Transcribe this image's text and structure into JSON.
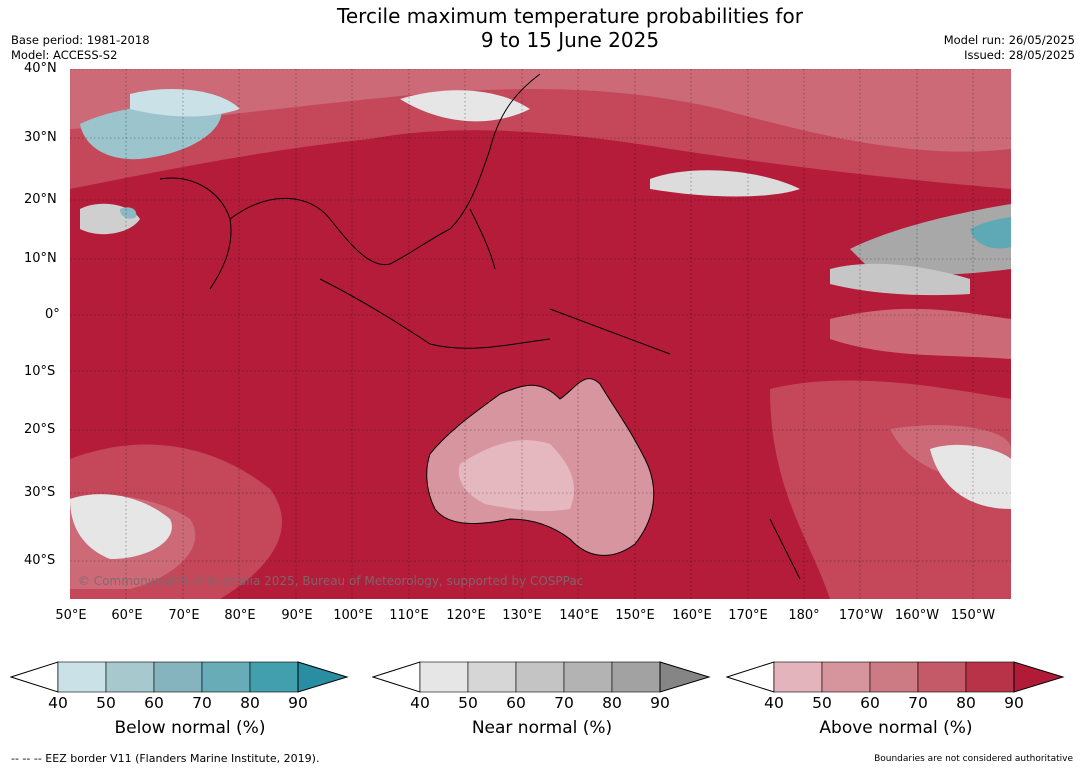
{
  "title_line1": "Tercile maximum temperature probabilities for",
  "title_line2": "9 to 15 June 2025",
  "base_period": "Base period: 1981-2018",
  "model": "Model: ACCESS-S2",
  "model_run": "Model run: 26/05/2025",
  "issued": "Issued: 28/05/2025",
  "copyright": "© Commonwealth of Australia 2025, Bureau of Meteorology, supported by COSPPac",
  "lat_labels": [
    "40°N",
    "30°N",
    "20°N",
    "10°N",
    "0°",
    "10°S",
    "20°S",
    "30°S",
    "40°S"
  ],
  "lon_labels": [
    "50°E",
    "60°E",
    "70°E",
    "80°E",
    "90°E",
    "100°E",
    "110°E",
    "120°E",
    "130°E",
    "140°E",
    "150°E",
    "160°E",
    "170°E",
    "180°",
    "170°W",
    "160°W",
    "150°W"
  ],
  "colorbars": [
    {
      "title": "Below normal (%)",
      "ticks": [
        "40",
        "50",
        "60",
        "70",
        "80",
        "90"
      ],
      "colors": [
        "#c9e1e7",
        "#a7c8cc",
        "#86b4be",
        "#68acb7",
        "#42a0ae"
      ],
      "arrow_right": "#2a8ea3"
    },
    {
      "title": "Near normal (%)",
      "ticks": [
        "40",
        "50",
        "60",
        "70",
        "80",
        "90"
      ],
      "colors": [
        "#e6e6e6",
        "#d6d6d6",
        "#c4c4c4",
        "#b3b3b3",
        "#a2a2a2"
      ],
      "arrow_right": "#858585"
    },
    {
      "title": "Above normal (%)",
      "ticks": [
        "40",
        "50",
        "60",
        "70",
        "80",
        "90"
      ],
      "colors": [
        "#e3b4bb",
        "#d6959d",
        "#cc7a84",
        "#c45a68",
        "#b93348"
      ],
      "arrow_right": "#b11b38"
    }
  ],
  "footer_left": "--  --  -- EEZ border V11 (Flanders Marine Institute, 2019).",
  "footer_right": "Boundaries are not considered authoritative"
}
